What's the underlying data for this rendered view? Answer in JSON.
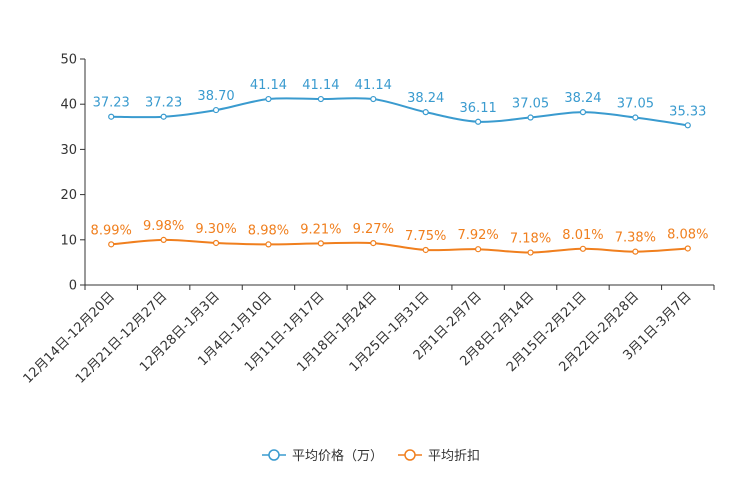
{
  "chart_data": {
    "type": "line",
    "title": "",
    "xlabel": "",
    "ylabel": "",
    "ylim": [
      0,
      50
    ],
    "yticks": [
      0,
      10,
      20,
      30,
      40,
      50
    ],
    "grid": false,
    "legend_position": "bottom-center",
    "categories": [
      "12月14日-12月20日",
      "12月21日-12月27日",
      "12月28日-1月3日",
      "1月4日-1月10日",
      "1月11日-1月17日",
      "1月18日-1月24日",
      "1月25日-1月31日",
      "2月1日-2月7日",
      "2月8日-2月14日",
      "2月15日-2月21日",
      "2月22日-2月28日",
      "3月1日-3月7日"
    ],
    "series": [
      {
        "name": "平均价格（万）",
        "color": "#3a9bcf",
        "values": [
          37.23,
          37.23,
          38.7,
          41.14,
          41.14,
          41.14,
          38.24,
          36.11,
          37.05,
          38.24,
          37.05,
          35.33
        ],
        "labels": [
          "37.23",
          "37.23",
          "38.70",
          "41.14",
          "41.14",
          "41.14",
          "38.24",
          "36.11",
          "37.05",
          "38.24",
          "37.05",
          "35.33"
        ]
      },
      {
        "name": "平均折扣",
        "color": "#f07f1e",
        "values": [
          8.99,
          9.98,
          9.3,
          8.98,
          9.21,
          9.27,
          7.75,
          7.92,
          7.18,
          8.01,
          7.38,
          8.08
        ],
        "labels": [
          "8.99%",
          "9.98%",
          "9.30%",
          "8.98%",
          "9.21%",
          "9.27%",
          "7.75%",
          "7.92%",
          "7.18%",
          "8.01%",
          "7.38%",
          "8.08%"
        ]
      }
    ]
  }
}
